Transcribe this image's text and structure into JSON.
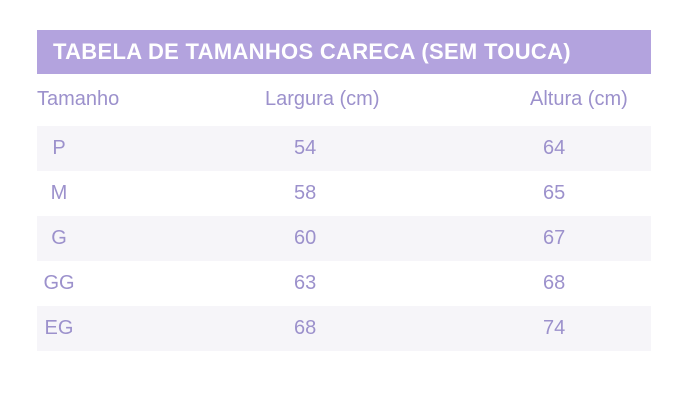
{
  "table": {
    "title": "TABELA DE TAMANHOS CARECA (SEM TOUCA)",
    "headers": {
      "size": "Tamanho",
      "width": "Largura (cm)",
      "height": "Altura (cm)"
    },
    "rows": [
      {
        "size": "P",
        "width": "54",
        "height": "64"
      },
      {
        "size": "M",
        "width": "58",
        "height": "65"
      },
      {
        "size": "G",
        "width": "60",
        "height": "67"
      },
      {
        "size": "GG",
        "width": "63",
        "height": "68"
      },
      {
        "size": "EG",
        "width": "68",
        "height": "74"
      }
    ]
  },
  "colors": {
    "title_background": "#b3a3de",
    "text": "#9c91cc",
    "row_shade": "#f6f5f9"
  }
}
